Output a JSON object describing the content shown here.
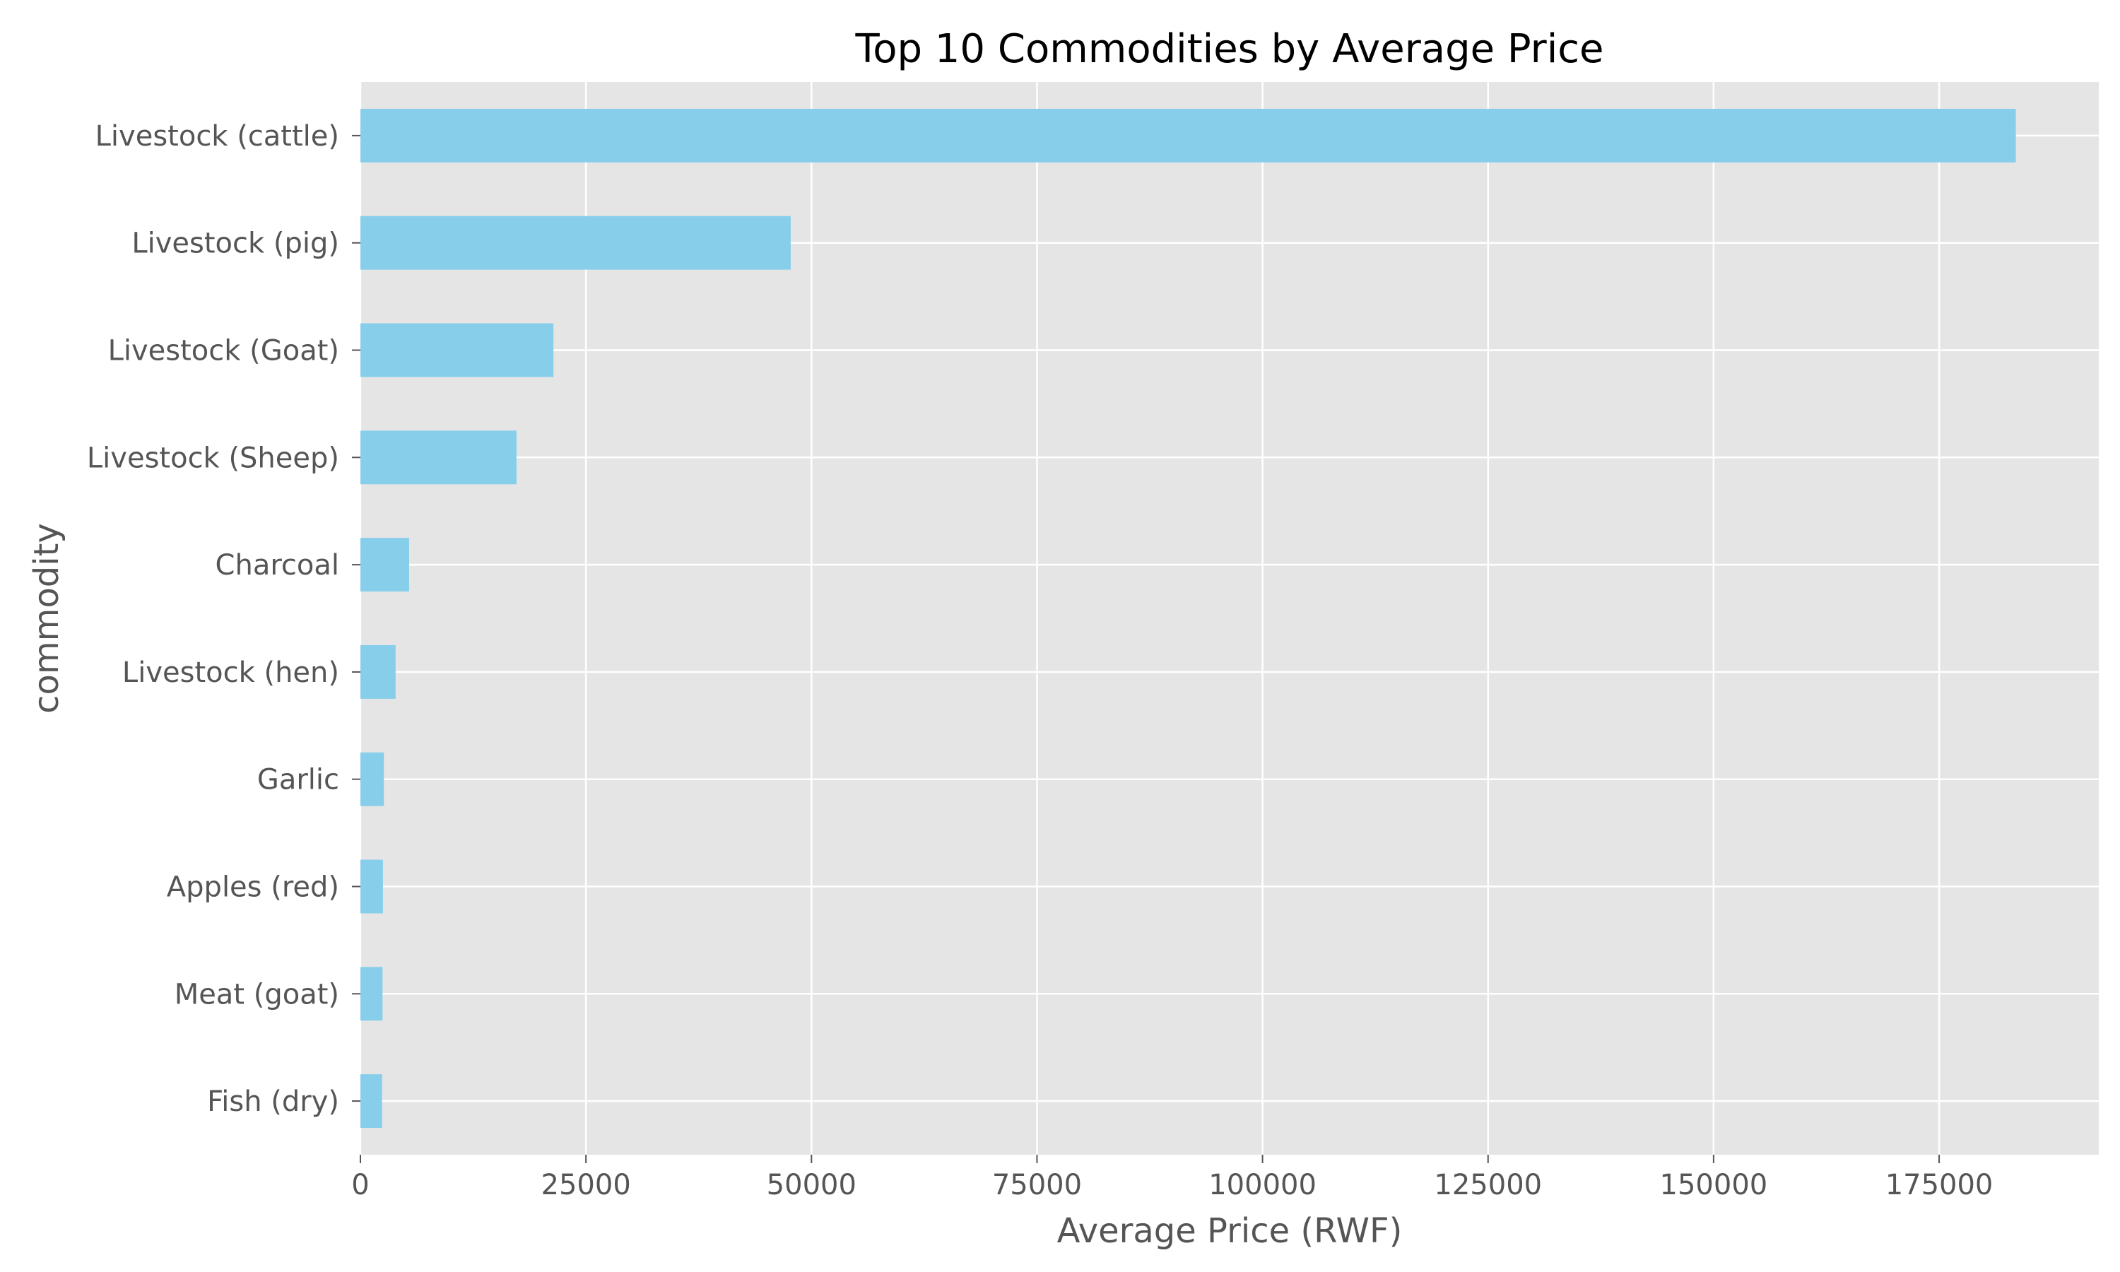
{
  "chart_data": {
    "type": "bar",
    "orientation": "horizontal",
    "title": "Top 10 Commodities by Average Price",
    "xlabel": "Average Price (RWF)",
    "ylabel": "commodity",
    "categories": [
      "Livestock (cattle)",
      "Livestock (pig)",
      "Livestock (Goat)",
      "Livestock (Sheep)",
      "Charcoal",
      "Livestock (hen)",
      "Garlic",
      "Apples (red)",
      "Meat (goat)",
      "Fish (dry)"
    ],
    "values": [
      183500,
      47700,
      21400,
      17300,
      5400,
      3900,
      2600,
      2500,
      2450,
      2400
    ],
    "xticks": [
      0,
      25000,
      50000,
      75000,
      100000,
      125000,
      150000,
      175000
    ],
    "xlim": [
      0,
      192700
    ],
    "grid": true,
    "legend": "none",
    "colors": {
      "bar": "#87ceeb",
      "plot_background": "#e5e5e5",
      "grid": "#ffffff",
      "text": "#555555",
      "title": "#000000"
    }
  }
}
